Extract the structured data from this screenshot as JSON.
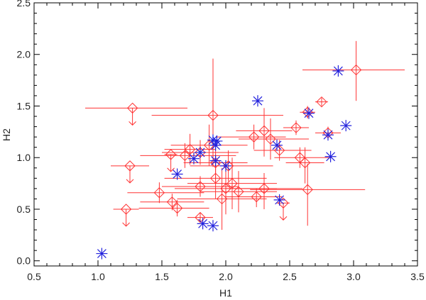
{
  "chart_data": {
    "type": "scatter",
    "title": "",
    "xlabel": "H1",
    "ylabel": "H2",
    "xlim": [
      0.5,
      3.5
    ],
    "ylim": [
      -0.05,
      2.5
    ],
    "xticks": [
      "0.5",
      "1.0",
      "1.5",
      "2.0",
      "2.5",
      "3.0",
      "3.5"
    ],
    "yticks": [
      "0.0",
      "0.5",
      "1.0",
      "1.5",
      "2.0",
      "2.5"
    ],
    "colors": {
      "diamonds": "#ff3333",
      "stars": "#2222dd",
      "axes": "#000000"
    },
    "series": [
      {
        "name": "diamonds",
        "marker": "diamond",
        "points": [
          {
            "x": 3.02,
            "y": 1.85,
            "xerr": [
              0.42,
              0.38
            ],
            "yerr": [
              0.3,
              0.28
            ]
          },
          {
            "x": 2.75,
            "y": 1.54,
            "xerr": [
              0.05,
              0.05
            ],
            "yerr": [
              0.04,
              0.04
            ]
          },
          {
            "x": 2.64,
            "y": 1.44,
            "xerr": [
              0.06,
              0.06
            ],
            "yerr": [
              0.06,
              0.06
            ]
          },
          {
            "x": 2.55,
            "y": 1.29,
            "xerr": [
              0.1,
              0.1
            ],
            "yerr": [
              0.07,
              0.07
            ]
          },
          {
            "x": 2.8,
            "y": 1.24,
            "xerr": [
              0.1,
              0.1
            ],
            "yerr": [
              0.06,
              0.06
            ]
          },
          {
            "x": 2.3,
            "y": 1.26,
            "xerr": [
              0.22,
              0.22
            ],
            "yerr": [
              0.25,
              0.22
            ]
          },
          {
            "x": 2.35,
            "y": 1.18,
            "xerr": [
              0.25,
              0.3
            ],
            "yerr": [
              0.2,
              0.2
            ]
          },
          {
            "x": 2.22,
            "y": 1.2,
            "xerr": [
              0.3,
              0.25
            ],
            "yerr": [
              0.12,
              0.12
            ]
          },
          {
            "x": 2.42,
            "y": 1.07,
            "xerr": [
              0.2,
              0.25
            ],
            "yerr": [
              0.1,
              0.1
            ]
          },
          {
            "x": 2.58,
            "y": 1.0,
            "xerr": [
              0.2,
              0.25
            ],
            "yerr": [
              0.1,
              0.1
            ]
          },
          {
            "x": 2.62,
            "y": 0.95,
            "xerr": [
              0.15,
              0.15
            ],
            "yerr": [
              0.2,
              0.15
            ]
          },
          {
            "x": 2.64,
            "y": 0.69,
            "xerr": [
              0.45,
              0.45
            ],
            "yerr": [
              0.35,
              0.25
            ]
          },
          {
            "x": 2.3,
            "y": 0.7,
            "xerr": [
              0.3,
              0.3
            ],
            "yerr": [
              0.2,
              0.15
            ]
          },
          {
            "x": 2.24,
            "y": 0.62,
            "xerr": [
              0.25,
              0.2
            ],
            "yerr": [
              0.1,
              0.08
            ]
          },
          {
            "x": 1.9,
            "y": 1.41,
            "xerr": [
              0.48,
              0.55
            ],
            "yerr": [
              0.5,
              0.55
            ]
          },
          {
            "x": 1.72,
            "y": 1.08,
            "xerr": [
              0.2,
              0.2
            ],
            "yerr": [
              0.15,
              0.15
            ]
          },
          {
            "x": 1.68,
            "y": 1.02,
            "xerr": [
              0.35,
              0.4
            ],
            "yerr": [
              0.12,
              0.12
            ]
          },
          {
            "x": 1.8,
            "y": 1.05,
            "xerr": [
              0.3,
              0.3
            ],
            "yerr": [
              0.12,
              0.12
            ]
          },
          {
            "x": 1.87,
            "y": 1.12,
            "xerr": [
              0.3,
              0.3
            ],
            "yerr": [
              0.2,
              0.2
            ]
          },
          {
            "x": 1.92,
            "y": 0.95,
            "xerr": [
              0.25,
              0.25
            ],
            "yerr": [
              0.2,
              0.2
            ]
          },
          {
            "x": 2.02,
            "y": 0.92,
            "xerr": [
              0.3,
              0.35
            ],
            "yerr": [
              0.15,
              0.15
            ]
          },
          {
            "x": 1.92,
            "y": 0.8,
            "xerr": [
              0.4,
              0.4
            ],
            "yerr": [
              0.2,
              0.2
            ]
          },
          {
            "x": 2.05,
            "y": 0.75,
            "xerr": [
              0.35,
              0.35
            ],
            "yerr": [
              0.25,
              0.25
            ]
          },
          {
            "x": 2.0,
            "y": 0.7,
            "xerr": [
              0.4,
              0.4
            ],
            "yerr": [
              0.25,
              0.25
            ]
          },
          {
            "x": 2.1,
            "y": 0.67,
            "xerr": [
              0.3,
              0.3
            ],
            "yerr": [
              0.2,
              0.2
            ]
          },
          {
            "x": 1.8,
            "y": 0.72,
            "xerr": [
              0.3,
              0.3
            ],
            "yerr": [
              0.1,
              0.1
            ]
          },
          {
            "x": 1.97,
            "y": 0.6,
            "xerr": [
              0.35,
              0.35
            ],
            "yerr": [
              0.3,
              0.3
            ]
          },
          {
            "x": 1.48,
            "y": 0.66,
            "xerr": [
              0.25,
              0.35
            ],
            "yerr": [
              0.1,
              0.1
            ]
          },
          {
            "x": 1.58,
            "y": 0.57,
            "xerr": [
              0.25,
              0.25
            ],
            "yerr": [
              0.08,
              0.08
            ]
          },
          {
            "x": 1.62,
            "y": 0.51,
            "xerr": [
              0.3,
              0.25
            ],
            "yerr": [
              0.08,
              0.08
            ]
          },
          {
            "x": 1.8,
            "y": 0.42,
            "xerr": [
              0.1,
              0.1
            ],
            "yerr": [
              0.05,
              0.05
            ]
          },
          {
            "x": 1.27,
            "y": 1.48,
            "xerr": [
              0.37,
              0.43
            ],
            "yerr": [
              0,
              0
            ],
            "upper": true
          },
          {
            "x": 1.25,
            "y": 0.92,
            "xerr": [
              0.15,
              0.15
            ],
            "yerr": [
              0,
              0
            ],
            "upper": true
          },
          {
            "x": 1.22,
            "y": 0.5,
            "xerr": [
              0.1,
              0.1
            ],
            "yerr": [
              0,
              0
            ],
            "upper": true
          },
          {
            "x": 1.57,
            "y": 1.03,
            "xerr": [
              0.05,
              0.05
            ],
            "yerr": [
              0,
              0
            ],
            "upper": true
          },
          {
            "x": 2.45,
            "y": 0.56,
            "xerr": [
              0.05,
              0.05
            ],
            "yerr": [
              0,
              0
            ],
            "upper": true
          }
        ]
      },
      {
        "name": "stars",
        "marker": "asterisk",
        "points": [
          {
            "x": 1.03,
            "y": 0.07
          },
          {
            "x": 1.62,
            "y": 0.84
          },
          {
            "x": 1.75,
            "y": 0.99
          },
          {
            "x": 1.8,
            "y": 1.05
          },
          {
            "x": 1.82,
            "y": 0.36
          },
          {
            "x": 1.9,
            "y": 0.34
          },
          {
            "x": 1.9,
            "y": 1.17
          },
          {
            "x": 1.93,
            "y": 1.16
          },
          {
            "x": 1.92,
            "y": 1.12
          },
          {
            "x": 1.92,
            "y": 0.97
          },
          {
            "x": 2.0,
            "y": 0.92
          },
          {
            "x": 2.25,
            "y": 1.55
          },
          {
            "x": 2.4,
            "y": 1.12
          },
          {
            "x": 2.42,
            "y": 0.59
          },
          {
            "x": 2.65,
            "y": 1.43
          },
          {
            "x": 2.8,
            "y": 1.22
          },
          {
            "x": 2.82,
            "y": 1.01
          },
          {
            "x": 2.88,
            "y": 1.84
          },
          {
            "x": 2.94,
            "y": 1.31
          }
        ]
      }
    ]
  }
}
